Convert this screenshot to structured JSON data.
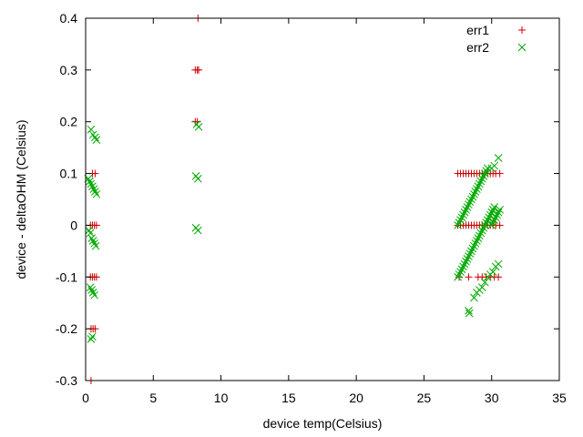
{
  "chart_data": {
    "type": "scatter",
    "title": "",
    "xlabel": "device temp(Celsius)",
    "ylabel": "device - deltaOHM (Celsius)",
    "xlim": [
      0,
      35
    ],
    "ylim": [
      -0.3,
      0.4
    ],
    "x_ticks": [
      0,
      5,
      10,
      15,
      20,
      25,
      30,
      35
    ],
    "y_ticks": [
      -0.3,
      -0.2,
      -0.1,
      0,
      0.1,
      0.2,
      0.3,
      0.4
    ],
    "x_tick_labels": [
      "0",
      "5",
      "10",
      "15",
      "20",
      "25",
      "30",
      "35"
    ],
    "y_tick_labels": [
      "-0.3",
      "-0.2",
      "-0.1",
      "0",
      "0.1",
      "0.2",
      "0.3",
      "0.4"
    ],
    "grid": false,
    "legend_position": "top-right",
    "series": [
      {
        "name": "err1",
        "marker": "plus",
        "color": "#cc0000",
        "points": [
          [
            0.4,
            -0.3
          ],
          [
            0.4,
            -0.2
          ],
          [
            0.55,
            -0.2
          ],
          [
            0.7,
            -0.2
          ],
          [
            0.35,
            -0.1
          ],
          [
            0.5,
            -0.1
          ],
          [
            0.65,
            -0.1
          ],
          [
            0.8,
            -0.1
          ],
          [
            0.35,
            0.0
          ],
          [
            0.5,
            0.0
          ],
          [
            0.65,
            0.0
          ],
          [
            0.8,
            0.0
          ],
          [
            0.5,
            0.1
          ],
          [
            0.7,
            0.1
          ],
          [
            8.1,
            0.2
          ],
          [
            8.25,
            0.2
          ],
          [
            8.1,
            0.3
          ],
          [
            8.25,
            0.3
          ],
          [
            8.35,
            0.3
          ],
          [
            8.3,
            0.4
          ],
          [
            27.5,
            0.1
          ],
          [
            27.7,
            0.1
          ],
          [
            27.9,
            0.1
          ],
          [
            28.1,
            0.1
          ],
          [
            28.3,
            0.1
          ],
          [
            28.5,
            0.1
          ],
          [
            28.7,
            0.1
          ],
          [
            28.9,
            0.1
          ],
          [
            29.1,
            0.1
          ],
          [
            29.3,
            0.1
          ],
          [
            29.5,
            0.1
          ],
          [
            29.7,
            0.1
          ],
          [
            29.9,
            0.1
          ],
          [
            30.1,
            0.1
          ],
          [
            30.3,
            0.1
          ],
          [
            30.6,
            0.1
          ],
          [
            27.5,
            0.0
          ],
          [
            27.7,
            0.0
          ],
          [
            27.9,
            0.0
          ],
          [
            28.1,
            0.0
          ],
          [
            28.3,
            0.0
          ],
          [
            28.5,
            0.0
          ],
          [
            28.7,
            0.0
          ],
          [
            28.9,
            0.0
          ],
          [
            29.1,
            0.0
          ],
          [
            29.3,
            0.0
          ],
          [
            29.5,
            0.0
          ],
          [
            29.7,
            0.0
          ],
          [
            29.9,
            0.0
          ],
          [
            30.1,
            0.0
          ],
          [
            30.3,
            0.0
          ],
          [
            30.6,
            0.0
          ],
          [
            27.6,
            -0.1
          ],
          [
            28.3,
            -0.1
          ],
          [
            29.0,
            -0.1
          ],
          [
            29.3,
            -0.1
          ],
          [
            29.6,
            -0.1
          ],
          [
            29.9,
            -0.1
          ],
          [
            30.2,
            -0.1
          ],
          [
            30.5,
            -0.1
          ]
        ]
      },
      {
        "name": "err2",
        "marker": "cross",
        "color": "#00aa00",
        "points": [
          [
            0.4,
            -0.22
          ],
          [
            0.5,
            -0.215
          ],
          [
            0.35,
            -0.12
          ],
          [
            0.45,
            -0.125
          ],
          [
            0.55,
            -0.13
          ],
          [
            0.65,
            -0.135
          ],
          [
            0.25,
            -0.01
          ],
          [
            0.35,
            -0.015
          ],
          [
            0.45,
            -0.025
          ],
          [
            0.55,
            -0.03
          ],
          [
            0.65,
            -0.035
          ],
          [
            0.75,
            -0.04
          ],
          [
            0.2,
            0.09
          ],
          [
            0.3,
            0.085
          ],
          [
            0.4,
            0.08
          ],
          [
            0.5,
            0.075
          ],
          [
            0.6,
            0.07
          ],
          [
            0.7,
            0.065
          ],
          [
            0.8,
            0.06
          ],
          [
            0.4,
            0.185
          ],
          [
            0.55,
            0.175
          ],
          [
            0.7,
            0.17
          ],
          [
            0.8,
            0.165
          ],
          [
            8.15,
            -0.005
          ],
          [
            8.3,
            -0.01
          ],
          [
            8.15,
            0.095
          ],
          [
            8.3,
            0.09
          ],
          [
            8.2,
            0.195
          ],
          [
            8.35,
            0.19
          ],
          [
            27.5,
            -0.1
          ],
          [
            27.6,
            -0.095
          ],
          [
            27.7,
            -0.09
          ],
          [
            27.8,
            -0.085
          ],
          [
            27.9,
            -0.08
          ],
          [
            28.0,
            -0.075
          ],
          [
            28.1,
            -0.07
          ],
          [
            28.2,
            -0.065
          ],
          [
            28.3,
            -0.06
          ],
          [
            28.4,
            -0.055
          ],
          [
            28.5,
            -0.05
          ],
          [
            28.6,
            -0.045
          ],
          [
            28.7,
            -0.04
          ],
          [
            28.8,
            -0.035
          ],
          [
            28.9,
            -0.03
          ],
          [
            29.0,
            -0.025
          ],
          [
            29.1,
            -0.02
          ],
          [
            29.2,
            -0.015
          ],
          [
            29.3,
            -0.01
          ],
          [
            29.4,
            -0.005
          ],
          [
            29.5,
            0.0
          ],
          [
            29.6,
            0.005
          ],
          [
            29.7,
            0.01
          ],
          [
            29.8,
            0.015
          ],
          [
            29.9,
            0.02
          ],
          [
            30.0,
            0.025
          ],
          [
            30.1,
            0.03
          ],
          [
            30.2,
            0.035
          ],
          [
            27.5,
            0.0
          ],
          [
            27.6,
            0.005
          ],
          [
            27.7,
            0.01
          ],
          [
            27.8,
            0.015
          ],
          [
            27.9,
            0.02
          ],
          [
            28.0,
            0.025
          ],
          [
            28.1,
            0.03
          ],
          [
            28.2,
            0.035
          ],
          [
            28.3,
            0.04
          ],
          [
            28.4,
            0.045
          ],
          [
            28.5,
            0.05
          ],
          [
            28.6,
            0.055
          ],
          [
            28.7,
            0.06
          ],
          [
            28.8,
            0.065
          ],
          [
            28.9,
            0.07
          ],
          [
            29.0,
            0.075
          ],
          [
            29.1,
            0.08
          ],
          [
            29.2,
            0.085
          ],
          [
            29.3,
            0.09
          ],
          [
            29.4,
            0.095
          ],
          [
            29.5,
            0.1
          ],
          [
            29.6,
            0.105
          ],
          [
            29.7,
            0.11
          ],
          [
            30.0,
            0.11
          ],
          [
            30.2,
            0.115
          ],
          [
            30.5,
            0.13
          ],
          [
            28.3,
            -0.165
          ],
          [
            28.35,
            -0.17
          ],
          [
            28.7,
            -0.14
          ],
          [
            28.9,
            -0.13
          ],
          [
            29.1,
            -0.125
          ],
          [
            29.3,
            -0.12
          ],
          [
            29.5,
            -0.11
          ],
          [
            29.7,
            -0.1
          ],
          [
            29.9,
            -0.095
          ],
          [
            30.1,
            -0.09
          ],
          [
            30.3,
            -0.08
          ],
          [
            30.5,
            -0.075
          ],
          [
            30.0,
            0.0
          ],
          [
            30.1,
            0.005
          ],
          [
            30.2,
            0.01
          ],
          [
            30.3,
            0.015
          ],
          [
            30.4,
            0.02
          ],
          [
            30.5,
            0.025
          ],
          [
            30.6,
            0.03
          ]
        ]
      }
    ]
  }
}
